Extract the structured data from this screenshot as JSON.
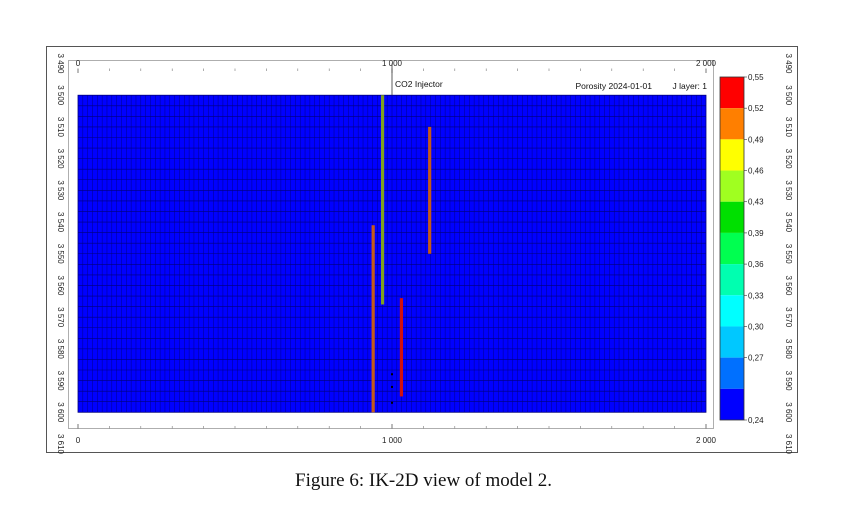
{
  "chart_data": {
    "type": "heatmap",
    "title": "Porosity 2024-01-01",
    "layer_label": "J layer: 1",
    "x_ticks": [
      "0",
      "1 000",
      "2 000"
    ],
    "x_tick_values": [
      0,
      1000,
      2000
    ],
    "xlim": [
      0,
      2000
    ],
    "y_ticks": [
      "3 490",
      "3 500",
      "3 510",
      "3 520",
      "3 530",
      "3 540",
      "3 550",
      "3 560",
      "3 570",
      "3 580",
      "3 590",
      "3 600",
      "3 610"
    ],
    "y_tick_values": [
      3490,
      3500,
      3510,
      3520,
      3530,
      3540,
      3550,
      3560,
      3570,
      3580,
      3590,
      3600,
      3610
    ],
    "ylim": [
      3490,
      3610
    ],
    "grid_extent": {
      "x": [
        0,
        2000
      ],
      "depth": [
        3500,
        3600
      ]
    },
    "grid_cells": {
      "nx": 130,
      "nz": 30
    },
    "background_value": 0.24,
    "colorbar": {
      "labels": [
        "0,55",
        "0,52",
        "0,49",
        "0,46",
        "0,43",
        "0,39",
        "0,36",
        "0,33",
        "0,30",
        "0,27",
        "0,24"
      ],
      "colors": [
        "#ff0000",
        "#ff7f00",
        "#ffff00",
        "#a0ff20",
        "#00e000",
        "#00ff50",
        "#00ffb0",
        "#00ffff",
        "#00c8ff",
        "#0070ff",
        "#0000ff"
      ]
    },
    "annotations": [
      {
        "text": "CO2 Injector",
        "x": 1000,
        "depth_top": 3490,
        "depth_bottom": 3500
      }
    ],
    "wells": [
      {
        "x": 970,
        "depth_top": 3500,
        "depth_bottom": 3566,
        "value": 0.43
      },
      {
        "x": 1120,
        "depth_top": 3510,
        "depth_bottom": 3550,
        "value": 0.52
      },
      {
        "x": 940,
        "depth_top": 3541,
        "depth_bottom": 3600,
        "value": 0.52
      },
      {
        "x": 1030,
        "depth_top": 3564,
        "depth_bottom": 3595,
        "value": 0.55
      }
    ],
    "markers": [
      {
        "x": 1000,
        "depth": 3588
      },
      {
        "x": 1000,
        "depth": 3592
      },
      {
        "x": 1000,
        "depth": 3597
      }
    ]
  },
  "caption": "Figure 6: IK-2D view of model 2.",
  "colors": {
    "grid_fill": "#0000ff",
    "grid_line": "#00007a",
    "frame": "#555555"
  }
}
